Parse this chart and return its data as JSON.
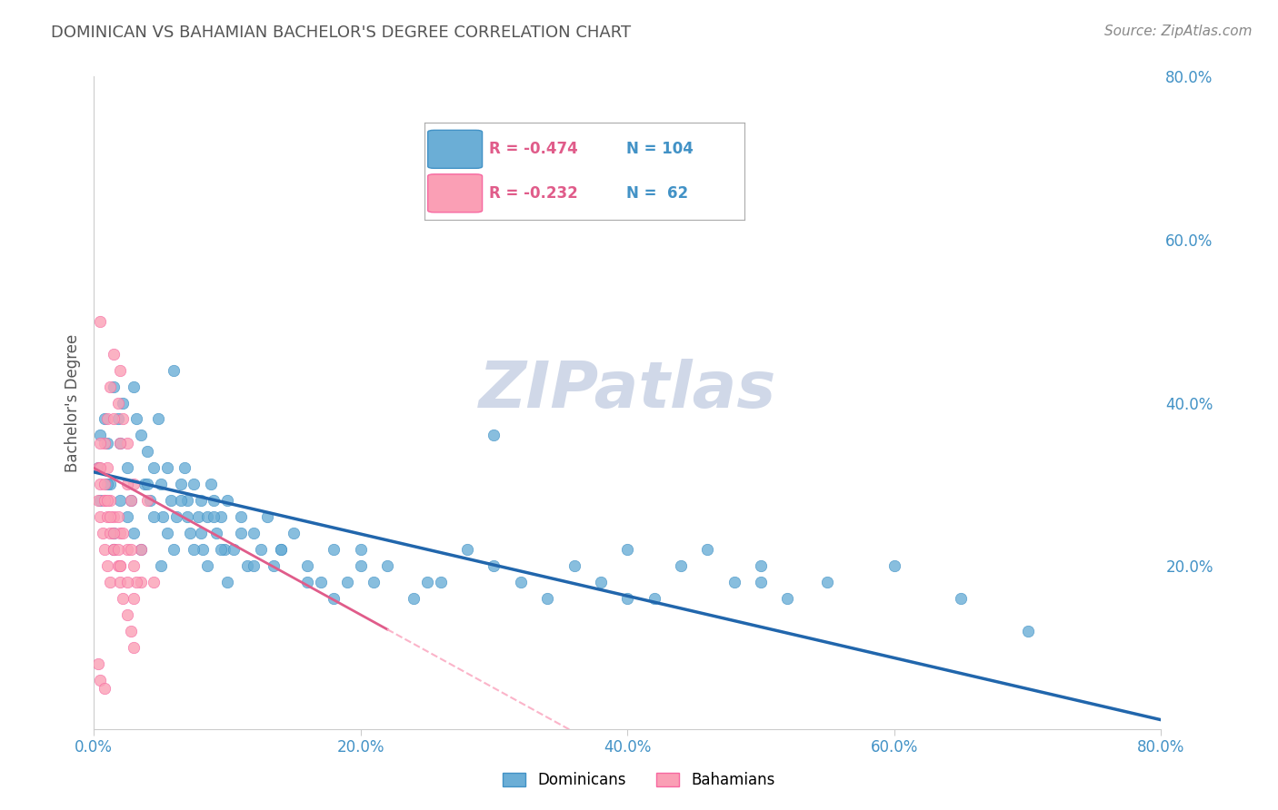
{
  "title": "DOMINICAN VS BAHAMIAN BACHELOR'S DEGREE CORRELATION CHART",
  "source": "Source: ZipAtlas.com",
  "ylabel": "Bachelor's Degree",
  "xlim": [
    0.0,
    0.8
  ],
  "ylim": [
    0.0,
    0.8
  ],
  "xtick_labels": [
    "0.0%",
    "20.0%",
    "40.0%",
    "60.0%",
    "80.0%"
  ],
  "xtick_positions": [
    0.0,
    0.2,
    0.4,
    0.6,
    0.8
  ],
  "right_ytick_labels": [
    "80.0%",
    "60.0%",
    "40.0%",
    "20.0%"
  ],
  "right_ytick_positions": [
    0.8,
    0.6,
    0.4,
    0.2
  ],
  "blue_color": "#6baed6",
  "blue_edge_color": "#4292c6",
  "pink_color": "#fa9fb5",
  "pink_edge_color": "#f768a1",
  "blue_line_color": "#2166ac",
  "pink_line_color": "#e05c8a",
  "pink_line_dashed_color": "#fbb4c9",
  "grid_color": "#cccccc",
  "watermark_color": "#d0d8e8",
  "legend_R_blue": "-0.474",
  "legend_N_blue": "104",
  "legend_R_pink": "-0.232",
  "legend_N_pink": " 62",
  "blue_intercept": 0.315,
  "blue_slope": -0.38,
  "pink_intercept": 0.32,
  "pink_slope": -0.9,
  "dominicans_x": [
    0.003,
    0.005,
    0.008,
    0.01,
    0.012,
    0.015,
    0.015,
    0.018,
    0.02,
    0.022,
    0.025,
    0.028,
    0.03,
    0.032,
    0.035,
    0.038,
    0.04,
    0.042,
    0.045,
    0.048,
    0.05,
    0.052,
    0.055,
    0.058,
    0.06,
    0.062,
    0.065,
    0.068,
    0.07,
    0.072,
    0.075,
    0.078,
    0.08,
    0.082,
    0.085,
    0.088,
    0.09,
    0.092,
    0.095,
    0.098,
    0.1,
    0.105,
    0.11,
    0.115,
    0.12,
    0.125,
    0.13,
    0.135,
    0.14,
    0.15,
    0.16,
    0.17,
    0.18,
    0.19,
    0.2,
    0.21,
    0.22,
    0.24,
    0.26,
    0.28,
    0.3,
    0.32,
    0.34,
    0.36,
    0.38,
    0.4,
    0.42,
    0.44,
    0.46,
    0.48,
    0.5,
    0.52,
    0.55,
    0.6,
    0.65,
    0.7,
    0.005,
    0.01,
    0.015,
    0.02,
    0.025,
    0.03,
    0.035,
    0.04,
    0.045,
    0.05,
    0.055,
    0.06,
    0.065,
    0.07,
    0.075,
    0.08,
    0.085,
    0.09,
    0.095,
    0.1,
    0.11,
    0.12,
    0.14,
    0.16,
    0.18,
    0.2,
    0.25,
    0.3,
    0.4,
    0.5
  ],
  "dominicans_y": [
    0.32,
    0.28,
    0.38,
    0.35,
    0.3,
    0.42,
    0.22,
    0.38,
    0.35,
    0.4,
    0.32,
    0.28,
    0.42,
    0.38,
    0.36,
    0.3,
    0.34,
    0.28,
    0.32,
    0.38,
    0.3,
    0.26,
    0.32,
    0.28,
    0.44,
    0.26,
    0.3,
    0.32,
    0.28,
    0.24,
    0.3,
    0.26,
    0.28,
    0.22,
    0.26,
    0.3,
    0.28,
    0.24,
    0.26,
    0.22,
    0.28,
    0.22,
    0.26,
    0.2,
    0.24,
    0.22,
    0.26,
    0.2,
    0.22,
    0.24,
    0.2,
    0.18,
    0.22,
    0.18,
    0.22,
    0.18,
    0.2,
    0.16,
    0.18,
    0.22,
    0.2,
    0.18,
    0.16,
    0.2,
    0.18,
    0.22,
    0.16,
    0.2,
    0.22,
    0.18,
    0.2,
    0.16,
    0.18,
    0.2,
    0.16,
    0.12,
    0.36,
    0.3,
    0.24,
    0.28,
    0.26,
    0.24,
    0.22,
    0.3,
    0.26,
    0.2,
    0.24,
    0.22,
    0.28,
    0.26,
    0.22,
    0.24,
    0.2,
    0.26,
    0.22,
    0.18,
    0.24,
    0.2,
    0.22,
    0.18,
    0.16,
    0.2,
    0.18,
    0.36,
    0.16,
    0.18
  ],
  "bahamians_x": [
    0.003,
    0.005,
    0.008,
    0.01,
    0.012,
    0.015,
    0.018,
    0.02,
    0.022,
    0.025,
    0.028,
    0.03,
    0.035,
    0.04,
    0.045,
    0.005,
    0.008,
    0.01,
    0.015,
    0.02,
    0.025,
    0.03,
    0.035,
    0.015,
    0.02,
    0.025,
    0.012,
    0.018,
    0.022,
    0.028,
    0.032,
    0.003,
    0.005,
    0.007,
    0.008,
    0.01,
    0.012,
    0.015,
    0.018,
    0.02,
    0.022,
    0.025,
    0.028,
    0.03,
    0.005,
    0.008,
    0.01,
    0.012,
    0.015,
    0.02,
    0.025,
    0.03,
    0.005,
    0.008,
    0.01,
    0.012,
    0.015,
    0.018,
    0.02,
    0.003,
    0.005,
    0.008
  ],
  "bahamians_y": [
    0.32,
    0.5,
    0.35,
    0.38,
    0.42,
    0.46,
    0.4,
    0.44,
    0.38,
    0.35,
    0.28,
    0.3,
    0.22,
    0.28,
    0.18,
    0.3,
    0.28,
    0.32,
    0.26,
    0.24,
    0.22,
    0.2,
    0.18,
    0.38,
    0.35,
    0.3,
    0.28,
    0.26,
    0.24,
    0.22,
    0.18,
    0.28,
    0.26,
    0.24,
    0.22,
    0.2,
    0.18,
    0.22,
    0.2,
    0.18,
    0.16,
    0.14,
    0.12,
    0.1,
    0.32,
    0.28,
    0.26,
    0.24,
    0.22,
    0.2,
    0.18,
    0.16,
    0.35,
    0.3,
    0.28,
    0.26,
    0.24,
    0.22,
    0.2,
    0.08,
    0.06,
    0.05
  ],
  "background_color": "#ffffff",
  "title_color": "#555555",
  "axis_label_color": "#555555",
  "tick_label_color": "#4292c6",
  "right_tick_color": "#4292c6"
}
